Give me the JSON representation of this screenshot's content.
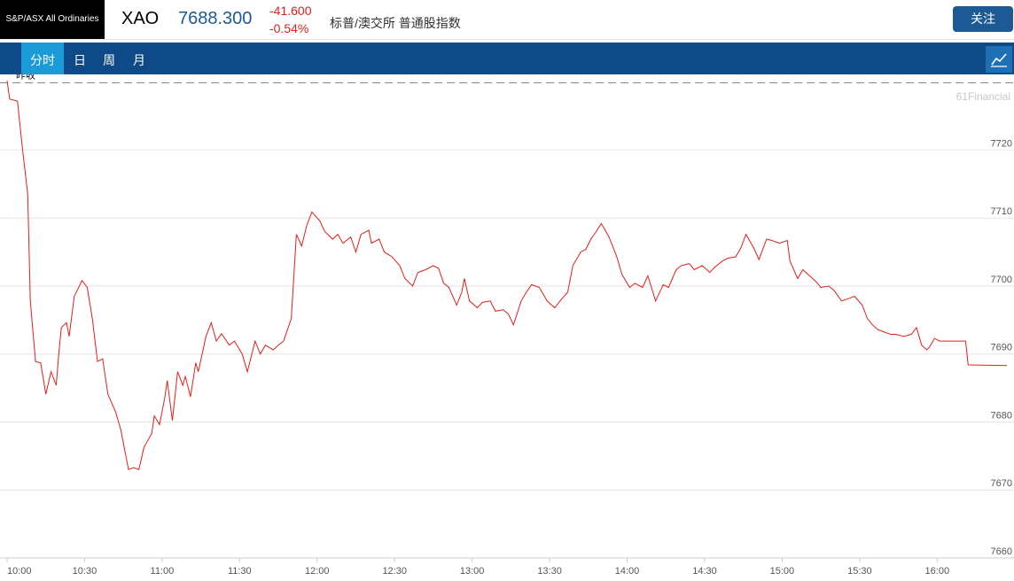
{
  "header": {
    "logo": "S&P/ASX All Ordinaries",
    "symbol": "XAO",
    "price": "7688.300",
    "change": "-41.600",
    "change_pct": "-0.54%",
    "name": "标普/澳交所 普通股指数",
    "follow_button": "关注"
  },
  "tabs": [
    "分时",
    "日",
    "周",
    "月"
  ],
  "chart_data": {
    "type": "line",
    "watermark": "61Financial",
    "prev_close_label": "昨收",
    "prev_close": 7729.9,
    "xlim": [
      600,
      987
    ],
    "xticks": [
      {
        "value": 600,
        "label": "10:00"
      },
      {
        "value": 630,
        "label": "10:30"
      },
      {
        "value": 660,
        "label": "11:00"
      },
      {
        "value": 690,
        "label": "11:30"
      },
      {
        "value": 720,
        "label": "12:00"
      },
      {
        "value": 750,
        "label": "12:30"
      },
      {
        "value": 780,
        "label": "13:00"
      },
      {
        "value": 810,
        "label": "13:30"
      },
      {
        "value": 840,
        "label": "14:00"
      },
      {
        "value": 870,
        "label": "14:30"
      },
      {
        "value": 900,
        "label": "15:00"
      },
      {
        "value": 930,
        "label": "15:30"
      },
      {
        "value": 960,
        "label": "16:00"
      }
    ],
    "ylim": [
      7660,
      7731
    ],
    "yticks": [
      7660,
      7670,
      7680,
      7690,
      7700,
      7710,
      7720
    ],
    "grid": true,
    "x": [
      600,
      601,
      604,
      606,
      608,
      609,
      611,
      613,
      615,
      617,
      619,
      620,
      621,
      623,
      624,
      626,
      629,
      631,
      633,
      635,
      637,
      639,
      642,
      644,
      647,
      649,
      651,
      653,
      656,
      657,
      659,
      661,
      662,
      664,
      666,
      668,
      669,
      671,
      673,
      674,
      677,
      679,
      681,
      683,
      686,
      688,
      691,
      693,
      696,
      698,
      700,
      703,
      705,
      707,
      710,
      712,
      714,
      716,
      718,
      721,
      723,
      726,
      728,
      730,
      733,
      735,
      737,
      740,
      741,
      744,
      746,
      749,
      752,
      754,
      757,
      759,
      762,
      765,
      767,
      769,
      771,
      774,
      776,
      777,
      779,
      782,
      784,
      787,
      789,
      792,
      794,
      796,
      799,
      801,
      803,
      806,
      809,
      812,
      814,
      817,
      819,
      822,
      824,
      826,
      828,
      830,
      833,
      836,
      838,
      841,
      843,
      846,
      848,
      851,
      854,
      856,
      859,
      861,
      864,
      866,
      869,
      872,
      874,
      877,
      879,
      882,
      884,
      886,
      889,
      891,
      894,
      896,
      899,
      902,
      903,
      906,
      908,
      910,
      913,
      915,
      918,
      920,
      923,
      926,
      928,
      931,
      933,
      935,
      937,
      939,
      942,
      944,
      947,
      950,
      952,
      954,
      956,
      957,
      959,
      961,
      971,
      972,
      987
    ],
    "series": [
      {
        "name": "XAO",
        "color": "#e0201b",
        "values": [
          7730.2,
          7727.5,
          7727.2,
          7720.0,
          7713.5,
          7697.8,
          7688.9,
          7688.7,
          7684.1,
          7687.4,
          7685.4,
          7690.0,
          7693.9,
          7694.6,
          7692.6,
          7698.5,
          7700.8,
          7699.8,
          7695.2,
          7688.9,
          7689.3,
          7684.1,
          7681.5,
          7678.9,
          7673.0,
          7673.3,
          7673.0,
          7676.3,
          7678.3,
          7680.9,
          7679.6,
          7683.5,
          7686.1,
          7680.2,
          7687.4,
          7685.4,
          7686.7,
          7683.7,
          7688.7,
          7687.4,
          7692.6,
          7694.6,
          7691.9,
          7693.0,
          7691.3,
          7691.9,
          7690.0,
          7687.4,
          7691.9,
          7690.0,
          7691.3,
          7690.6,
          7691.3,
          7691.9,
          7695.2,
          7707.6,
          7705.9,
          7708.9,
          7710.9,
          7709.6,
          7708.0,
          7706.9,
          7707.6,
          7706.3,
          7707.2,
          7705.0,
          7707.6,
          7708.2,
          7706.3,
          7706.9,
          7705.0,
          7704.3,
          7703.0,
          7701.1,
          7700.0,
          7702.0,
          7702.4,
          7703.0,
          7702.6,
          7700.4,
          7699.8,
          7697.2,
          7699.1,
          7701.1,
          7697.8,
          7696.8,
          7697.6,
          7697.8,
          7696.3,
          7696.5,
          7695.9,
          7694.3,
          7697.8,
          7699.1,
          7700.2,
          7699.8,
          7697.8,
          7696.8,
          7697.8,
          7699.1,
          7703.0,
          7705.0,
          7705.4,
          7706.9,
          7708.0,
          7709.2,
          7707.2,
          7704.3,
          7701.7,
          7699.8,
          7700.4,
          7699.8,
          7701.5,
          7697.8,
          7700.2,
          7699.8,
          7702.4,
          7703.0,
          7703.3,
          7702.4,
          7703.0,
          7702.0,
          7702.8,
          7703.7,
          7704.1,
          7704.3,
          7705.6,
          7707.6,
          7705.6,
          7703.9,
          7706.9,
          7706.7,
          7706.3,
          7706.7,
          7703.7,
          7701.1,
          7702.4,
          7701.7,
          7700.7,
          7699.8,
          7700.0,
          7699.4,
          7697.8,
          7698.2,
          7698.5,
          7697.2,
          7695.2,
          7694.3,
          7693.6,
          7693.3,
          7692.9,
          7692.9,
          7692.6,
          7692.9,
          7693.9,
          7691.3,
          7690.6,
          7691.0,
          7692.3,
          7691.9,
          7691.9,
          7688.4,
          7688.3
        ]
      }
    ]
  }
}
